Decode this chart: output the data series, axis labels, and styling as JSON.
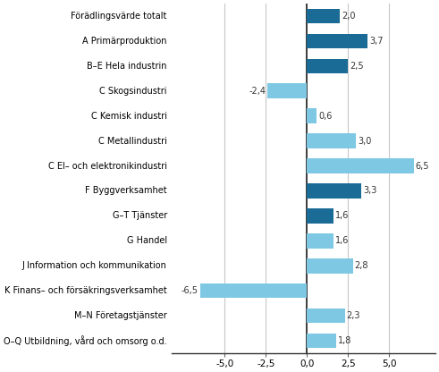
{
  "categories": [
    "Förädlingsvärde totalt",
    "A Primärproduktion",
    "B–E Hela industrin",
    "C Skogsindustri",
    "C Kemisk industri",
    "C Metallindustri",
    "C El– och elektronikindustri",
    "F Byggverksamhet",
    "G–T Tjänster",
    "G Handel",
    "J Information och kommunikation",
    "K Finans– och försäkringsverksamhet",
    "M–N Företagstjänster",
    "O–Q Utbildning, vård och omsorg o.d."
  ],
  "values": [
    2.0,
    3.7,
    2.5,
    -2.4,
    0.6,
    3.0,
    6.5,
    3.3,
    1.6,
    1.6,
    2.8,
    -6.5,
    2.3,
    1.8
  ],
  "colors": [
    "#1a6b96",
    "#1a6b96",
    "#1a6b96",
    "#7ec8e3",
    "#7ec8e3",
    "#7ec8e3",
    "#7ec8e3",
    "#1a6b96",
    "#1a6b96",
    "#7ec8e3",
    "#7ec8e3",
    "#7ec8e3",
    "#7ec8e3",
    "#7ec8e3"
  ],
  "xlim": [
    -8.2,
    7.8
  ],
  "xticks": [
    -5.0,
    -2.5,
    0.0,
    2.5,
    5.0
  ],
  "xtick_labels": [
    "-5,0",
    "-2,5",
    "0,0",
    "2,5",
    "5,0"
  ],
  "bar_height": 0.6,
  "label_fontsize": 7.0,
  "tick_fontsize": 7.5,
  "value_fontsize": 7.0,
  "grid_color": "#c8c8c8",
  "bg_color": "#ffffff",
  "spine_color": "#333333"
}
